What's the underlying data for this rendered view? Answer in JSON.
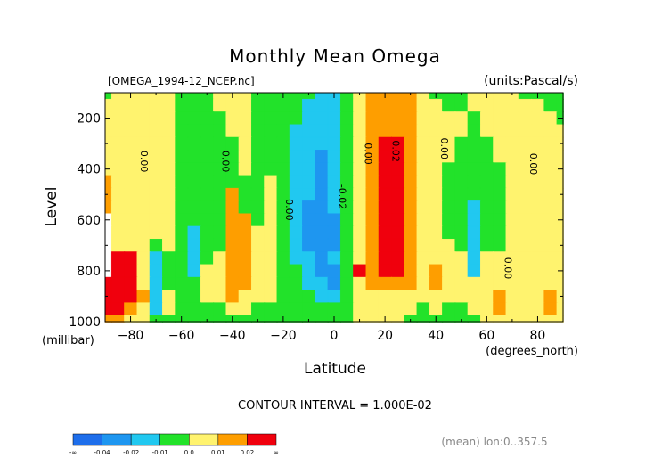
{
  "chart_data": {
    "type": "heatmap",
    "title": "Monthly Mean Omega",
    "file_label": "[OMEGA_1994-12_NCEP.nc]",
    "units_label": "(units:Pascal/s)",
    "xlabel": "Latitude",
    "x_unit_label": "(degrees_north)",
    "ylabel": "Level",
    "y_unit_label": "(millibar)",
    "xlim": [
      -90,
      90
    ],
    "ylim": [
      1000,
      100
    ],
    "x_ticks": [
      -80,
      -60,
      -40,
      -20,
      0,
      20,
      40,
      60,
      80
    ],
    "x_tick_labels": [
      "−80",
      "−60",
      "−40",
      "−20",
      "0",
      "20",
      "40",
      "60",
      "80"
    ],
    "y_ticks": [
      200,
      400,
      600,
      800,
      1000
    ],
    "y_tick_labels": [
      "200",
      "400",
      "600",
      "800",
      "1000"
    ],
    "contour_interval_text": "CONTOUR INTERVAL = 1.000E-02",
    "mean_note": "(mean) lon:0..357.5",
    "contour_labels": [
      {
        "text": "0.00",
        "x": -76,
        "level": 370
      },
      {
        "text": "0.00",
        "x": -44,
        "level": 370
      },
      {
        "text": "0.00",
        "x": -19,
        "level": 560
      },
      {
        "text": "-0.02",
        "x": 2,
        "level": 510
      },
      {
        "text": "0.00",
        "x": 12,
        "level": 340
      },
      {
        "text": "0.02",
        "x": 23,
        "level": 330
      },
      {
        "text": "0.00",
        "x": 42,
        "level": 320
      },
      {
        "text": "0.00",
        "x": 67,
        "level": 790
      },
      {
        "text": "0.00",
        "x": 77,
        "level": 380
      }
    ],
    "colorbar": {
      "boundaries": [
        "-∞",
        "-0.04",
        "-0.02",
        "-0.01",
        "0.0",
        "0.01",
        "0.02",
        "∞"
      ],
      "colors": [
        "#1e6eeb",
        "#1e96f0",
        "#21c8f0",
        "#22e22a",
        "#fff36e",
        "#fe9e00",
        "#f0000d"
      ]
    },
    "bins": [
      {
        "max": -0.04,
        "color": "#1e6eeb"
      },
      {
        "max": -0.02,
        "color": "#1e96f0"
      },
      {
        "max": -0.01,
        "color": "#21c8f0"
      },
      {
        "max": 0.0,
        "color": "#22e22a"
      },
      {
        "max": 0.01,
        "color": "#fff36e"
      },
      {
        "max": 0.02,
        "color": "#fe9e00"
      },
      {
        "max": 99,
        "color": "#f0000d"
      }
    ],
    "missing_color": "#ffffff",
    "field": {
      "lat": [
        -90,
        -85,
        -80,
        -75,
        -70,
        -65,
        -60,
        -55,
        -50,
        -45,
        -40,
        -35,
        -30,
        -25,
        -20,
        -15,
        -10,
        -5,
        0,
        5,
        10,
        15,
        20,
        25,
        30,
        35,
        40,
        45,
        50,
        55,
        60,
        65,
        70,
        75,
        80,
        85,
        90
      ],
      "levels": [
        100,
        150,
        200,
        250,
        300,
        350,
        400,
        450,
        500,
        550,
        600,
        650,
        700,
        750,
        800,
        850,
        900,
        950,
        1000
      ],
      "values": [
        [
          -0.002,
          0.004,
          0.004,
          0.004,
          0.004,
          0.004,
          -0.002,
          -0.003,
          -0.003,
          0.004,
          0.004,
          0.004,
          -0.002,
          -0.003,
          -0.003,
          -0.003,
          -0.003,
          -0.011,
          -0.011,
          -0.005,
          0.005,
          0.013,
          0.013,
          0.013,
          0.013,
          0.005,
          -0.004,
          -0.004,
          -0.004,
          0.004,
          0.004,
          0.004,
          0.004,
          -0.003,
          -0.003,
          -0.003,
          -0.003
        ],
        [
          0.004,
          0.004,
          0.004,
          0.004,
          0.004,
          0.004,
          -0.002,
          -0.003,
          -0.003,
          0.004,
          0.004,
          0.004,
          -0.002,
          -0.003,
          -0.003,
          -0.003,
          -0.011,
          -0.012,
          -0.011,
          -0.005,
          0.005,
          0.014,
          0.014,
          0.014,
          0.014,
          0.006,
          0.005,
          -0.004,
          -0.004,
          0.004,
          0.004,
          0.004,
          0.004,
          0.004,
          0.004,
          -0.003,
          -0.003
        ],
        [
          0.004,
          0.004,
          0.004,
          0.004,
          0.004,
          0.004,
          -0.002,
          -0.003,
          -0.003,
          -0.003,
          0.004,
          0.004,
          -0.002,
          -0.003,
          -0.003,
          -0.003,
          -0.012,
          -0.013,
          -0.012,
          -0.005,
          0.005,
          0.015,
          0.016,
          0.016,
          0.015,
          0.007,
          0.004,
          0.004,
          0.004,
          -0.004,
          0.004,
          0.004,
          0.004,
          0.004,
          0.004,
          0.004,
          -0.003
        ],
        [
          0.004,
          0.004,
          0.004,
          0.004,
          0.004,
          0.004,
          -0.002,
          -0.003,
          -0.003,
          -0.003,
          0.004,
          0.004,
          -0.002,
          -0.003,
          -0.003,
          -0.011,
          -0.014,
          -0.015,
          -0.013,
          -0.005,
          0.005,
          0.016,
          0.019,
          0.019,
          0.016,
          0.008,
          0.004,
          0.004,
          0.004,
          -0.004,
          0.004,
          0.004,
          0.004,
          0.004,
          0.004,
          0.004,
          0.004
        ],
        [
          0.004,
          0.004,
          0.004,
          0.004,
          0.004,
          0.004,
          -0.003,
          -0.003,
          -0.003,
          -0.003,
          -0.003,
          0.004,
          -0.002,
          -0.003,
          -0.003,
          -0.012,
          -0.015,
          -0.019,
          -0.014,
          -0.005,
          0.005,
          0.016,
          0.021,
          0.022,
          0.017,
          0.008,
          0.004,
          0.004,
          -0.004,
          -0.004,
          -0.004,
          0.004,
          0.004,
          0.004,
          0.004,
          0.004,
          0.004
        ],
        [
          0.004,
          0.004,
          0.004,
          0.004,
          0.004,
          0.004,
          -0.003,
          -0.003,
          -0.003,
          -0.003,
          -0.003,
          0.004,
          -0.002,
          -0.003,
          -0.003,
          -0.012,
          -0.015,
          -0.022,
          -0.014,
          -0.005,
          0.005,
          0.016,
          0.022,
          0.023,
          0.017,
          0.008,
          0.004,
          0.004,
          -0.004,
          -0.004,
          -0.004,
          0.004,
          0.004,
          0.004,
          0.004,
          0.004,
          0.004
        ],
        [
          0.004,
          0.004,
          0.004,
          0.004,
          0.004,
          0.004,
          -0.003,
          -0.003,
          -0.003,
          -0.003,
          -0.003,
          0.004,
          -0.002,
          -0.003,
          -0.003,
          -0.012,
          -0.015,
          -0.022,
          -0.015,
          -0.005,
          0.005,
          0.016,
          0.022,
          0.023,
          0.017,
          0.008,
          0.004,
          -0.004,
          -0.004,
          -0.004,
          -0.004,
          -0.004,
          0.004,
          0.004,
          0.004,
          0.004,
          0.004
        ],
        [
          0.012,
          0.004,
          0.004,
          0.004,
          0.004,
          0.004,
          -0.003,
          -0.003,
          -0.003,
          -0.003,
          -0.003,
          -0.003,
          -0.002,
          0.004,
          -0.003,
          -0.012,
          -0.015,
          -0.022,
          -0.015,
          -0.005,
          0.005,
          0.016,
          0.023,
          0.024,
          0.017,
          0.008,
          0.004,
          -0.004,
          -0.004,
          -0.004,
          -0.004,
          -0.004,
          0.004,
          0.004,
          0.004,
          0.004,
          0.004
        ],
        [
          0.012,
          0.004,
          0.004,
          0.004,
          0.004,
          0.004,
          -0.003,
          -0.003,
          -0.003,
          -0.003,
          0.012,
          -0.003,
          -0.002,
          0.004,
          -0.003,
          -0.012,
          -0.018,
          -0.022,
          -0.015,
          -0.005,
          0.005,
          0.016,
          0.023,
          0.024,
          0.017,
          0.008,
          0.004,
          -0.004,
          -0.004,
          -0.004,
          -0.004,
          -0.004,
          0.004,
          0.004,
          0.004,
          0.004,
          0.004
        ],
        [
          0.012,
          0.004,
          0.004,
          0.004,
          0.004,
          0.004,
          -0.003,
          -0.003,
          -0.003,
          -0.003,
          0.012,
          -0.003,
          -0.002,
          0.004,
          -0.003,
          -0.012,
          -0.021,
          -0.022,
          -0.015,
          -0.005,
          0.005,
          0.016,
          0.023,
          0.024,
          0.017,
          0.008,
          0.004,
          -0.004,
          -0.004,
          -0.012,
          -0.004,
          -0.004,
          0.004,
          0.004,
          0.004,
          0.004,
          0.004
        ],
        [
          null,
          0.004,
          0.004,
          0.004,
          0.004,
          0.004,
          -0.003,
          -0.003,
          -0.003,
          -0.003,
          0.012,
          0.012,
          -0.002,
          0.004,
          -0.003,
          -0.012,
          -0.021,
          -0.022,
          -0.024,
          -0.005,
          0.005,
          0.016,
          0.023,
          0.024,
          0.017,
          0.008,
          0.004,
          -0.004,
          -0.004,
          -0.012,
          -0.004,
          -0.004,
          0.004,
          0.004,
          0.004,
          0.004,
          0.004
        ],
        [
          null,
          0.004,
          0.004,
          0.004,
          0.004,
          0.004,
          -0.003,
          -0.012,
          -0.003,
          -0.003,
          0.012,
          0.012,
          0.004,
          0.004,
          -0.003,
          -0.012,
          -0.021,
          -0.022,
          -0.024,
          -0.005,
          0.005,
          0.016,
          0.023,
          0.024,
          0.017,
          0.008,
          0.004,
          -0.004,
          -0.004,
          -0.012,
          -0.004,
          -0.004,
          0.004,
          0.004,
          0.004,
          0.004,
          0.004
        ],
        [
          null,
          0.004,
          0.004,
          0.004,
          -0.003,
          0.004,
          -0.003,
          -0.012,
          -0.003,
          -0.003,
          0.012,
          0.012,
          0.004,
          0.004,
          -0.003,
          -0.012,
          -0.021,
          -0.022,
          -0.024,
          -0.005,
          0.005,
          0.016,
          0.023,
          0.024,
          0.017,
          0.008,
          0.004,
          0.004,
          -0.004,
          -0.012,
          -0.004,
          -0.004,
          0.004,
          0.004,
          0.004,
          0.004,
          0.004
        ],
        [
          null,
          0.024,
          0.024,
          0.004,
          -0.012,
          -0.003,
          -0.003,
          -0.012,
          -0.003,
          0.004,
          0.012,
          0.012,
          0.004,
          0.004,
          -0.003,
          -0.012,
          -0.012,
          -0.022,
          -0.015,
          -0.005,
          0.005,
          0.016,
          0.023,
          0.024,
          0.017,
          0.008,
          0.004,
          0.004,
          0.004,
          -0.012,
          0.004,
          0.004,
          0.004,
          0.004,
          0.004,
          0.004,
          0.004
        ],
        [
          null,
          0.024,
          0.024,
          0.004,
          -0.012,
          -0.003,
          -0.003,
          -0.012,
          0.004,
          0.004,
          0.012,
          0.012,
          0.004,
          0.004,
          -0.003,
          -0.003,
          -0.012,
          -0.021,
          -0.021,
          -0.005,
          0.022,
          0.012,
          0.023,
          0.022,
          0.017,
          0.008,
          0.012,
          0.004,
          0.004,
          -0.012,
          0.004,
          0.004,
          0.004,
          0.004,
          0.004,
          0.004,
          0.004
        ],
        [
          0.024,
          0.024,
          0.024,
          0.004,
          -0.012,
          -0.003,
          -0.003,
          -0.003,
          0.004,
          0.004,
          0.012,
          0.012,
          0.004,
          0.004,
          -0.003,
          -0.003,
          -0.012,
          -0.012,
          -0.021,
          -0.005,
          0.005,
          0.012,
          0.012,
          0.012,
          0.012,
          0.004,
          0.012,
          0.004,
          0.004,
          0.004,
          0.004,
          0.004,
          0.004,
          0.004,
          0.004,
          0.004,
          0.004
        ],
        [
          0.024,
          0.024,
          0.024,
          0.012,
          -0.012,
          0.004,
          -0.003,
          -0.003,
          0.004,
          0.004,
          0.012,
          0.004,
          0.004,
          0.004,
          -0.003,
          -0.003,
          -0.003,
          -0.012,
          -0.012,
          -0.005,
          0.004,
          0.004,
          0.004,
          0.004,
          0.004,
          0.004,
          0.004,
          0.004,
          0.004,
          0.004,
          0.004,
          0.012,
          0.004,
          0.004,
          0.004,
          0.012,
          0.004
        ],
        [
          0.024,
          0.024,
          0.012,
          0.004,
          -0.012,
          0.004,
          -0.003,
          -0.003,
          -0.003,
          -0.003,
          0.004,
          0.004,
          -0.003,
          -0.003,
          -0.003,
          -0.003,
          -0.003,
          -0.003,
          -0.003,
          -0.005,
          0.004,
          0.004,
          0.004,
          0.004,
          0.004,
          -0.003,
          0.004,
          -0.003,
          -0.003,
          0.004,
          0.004,
          0.012,
          0.004,
          0.004,
          0.004,
          0.012,
          0.004
        ],
        [
          0.012,
          0.012,
          0.004,
          0.004,
          -0.003,
          -0.003,
          -0.003,
          -0.003,
          -0.003,
          -0.003,
          -0.003,
          -0.003,
          -0.003,
          -0.003,
          -0.003,
          -0.003,
          -0.003,
          -0.003,
          -0.003,
          -0.003,
          0.004,
          0.004,
          0.004,
          0.004,
          -0.003,
          -0.003,
          -0.003,
          -0.003,
          -0.003,
          -0.003,
          0.004,
          0.004,
          0.004,
          0.004,
          0.004,
          0.004,
          0.004
        ]
      ]
    }
  }
}
